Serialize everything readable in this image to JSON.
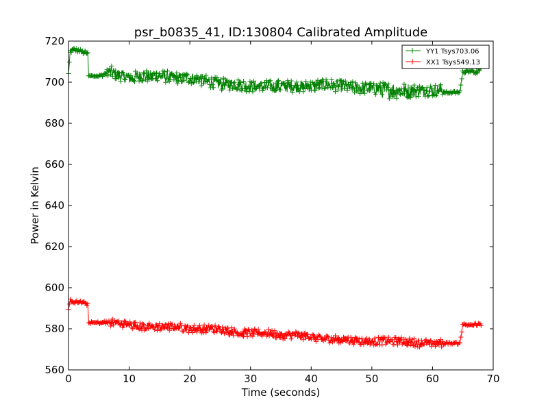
{
  "chart_data": {
    "type": "line",
    "title": "psr_b0835_41, ID:130804 Calibrated Amplitude",
    "xlabel": "Time (seconds)",
    "ylabel": "Power in Kelvin",
    "xlim": [
      0,
      70
    ],
    "ylim": [
      560,
      720
    ],
    "x_ticks": [
      "0",
      "10",
      "20",
      "30",
      "40",
      "50",
      "60",
      "70"
    ],
    "y_ticks": [
      "560",
      "580",
      "600",
      "620",
      "640",
      "660",
      "680",
      "700",
      "720"
    ],
    "grid": false,
    "legend_position": "top-right",
    "marker": "plus",
    "series": [
      {
        "name": "YY1 Tsys703.06",
        "color": "#008000",
        "x": [
          0,
          0.3,
          1,
          2,
          3,
          3.2,
          3.3,
          4,
          5,
          6,
          6.5,
          7,
          8,
          10,
          12,
          15,
          18,
          20,
          22,
          25,
          28,
          30,
          33,
          35,
          38,
          40,
          42,
          45,
          48,
          50,
          52,
          55,
          58,
          60,
          61.5,
          62,
          63,
          64.5,
          65,
          66,
          67,
          68
        ],
        "y": [
          704,
          715,
          716,
          715,
          714,
          714,
          703,
          703,
          703,
          704,
          705,
          705,
          704,
          702,
          703,
          703,
          702,
          702,
          701,
          699,
          699,
          698,
          698,
          698,
          698,
          698,
          699,
          698,
          697,
          697,
          696,
          696,
          696,
          696,
          696,
          695,
          695,
          695,
          705,
          706,
          705,
          706
        ],
        "spread": [
          0.5,
          1,
          1,
          1,
          1,
          0.5,
          0.5,
          0.5,
          0.5,
          1,
          2,
          3,
          3,
          3,
          3,
          3,
          3,
          3,
          3,
          3,
          3,
          3,
          3,
          3,
          3,
          3,
          3,
          3,
          3,
          3,
          4,
          4,
          3,
          3,
          3,
          0.6,
          0.6,
          0.6,
          1,
          1,
          1,
          1
        ]
      },
      {
        "name": "XX1 Tsys549.13",
        "color": "#ff0000",
        "x": [
          0,
          0.3,
          1,
          2,
          3,
          3.2,
          3.3,
          4,
          5,
          6,
          6.5,
          7,
          8,
          10,
          12,
          15,
          18,
          20,
          22,
          25,
          28,
          30,
          33,
          35,
          38,
          40,
          42,
          45,
          48,
          50,
          52,
          55,
          58,
          60,
          61.5,
          62,
          63,
          64.5,
          65,
          66,
          67,
          68
        ],
        "y": [
          589,
          594,
          593,
          593,
          592,
          592,
          583,
          583,
          583,
          583,
          583,
          583,
          583,
          582,
          581,
          581,
          581,
          580,
          580,
          580,
          578,
          578,
          578,
          577,
          577,
          576,
          575,
          575,
          574,
          574,
          574,
          574,
          573,
          573,
          573,
          573,
          573,
          573,
          582,
          582,
          582,
          582
        ],
        "spread": [
          0.5,
          0.8,
          0.8,
          0.8,
          0.8,
          0.5,
          0.5,
          0.5,
          0.5,
          1,
          1.5,
          2,
          2,
          2,
          2,
          2,
          2,
          2,
          2,
          2,
          2,
          2,
          2,
          2,
          2,
          2,
          2,
          2,
          2,
          2,
          2,
          2,
          2,
          2,
          2,
          0.5,
          0.5,
          0.5,
          0.8,
          0.8,
          0.8,
          0.8
        ]
      }
    ]
  }
}
